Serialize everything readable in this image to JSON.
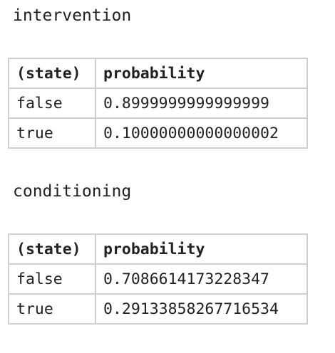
{
  "sections": [
    {
      "title": "intervention",
      "table": {
        "headers": [
          "(state)",
          "probability"
        ],
        "rows": [
          {
            "state": "false",
            "probability": "0.8999999999999999"
          },
          {
            "state": "true",
            "probability": "0.10000000000000002"
          }
        ]
      }
    },
    {
      "title": "conditioning",
      "table": {
        "headers": [
          "(state)",
          "probability"
        ],
        "rows": [
          {
            "state": "false",
            "probability": "0.7086614173228347"
          },
          {
            "state": "true",
            "probability": "0.29133858267716534"
          }
        ]
      }
    }
  ]
}
